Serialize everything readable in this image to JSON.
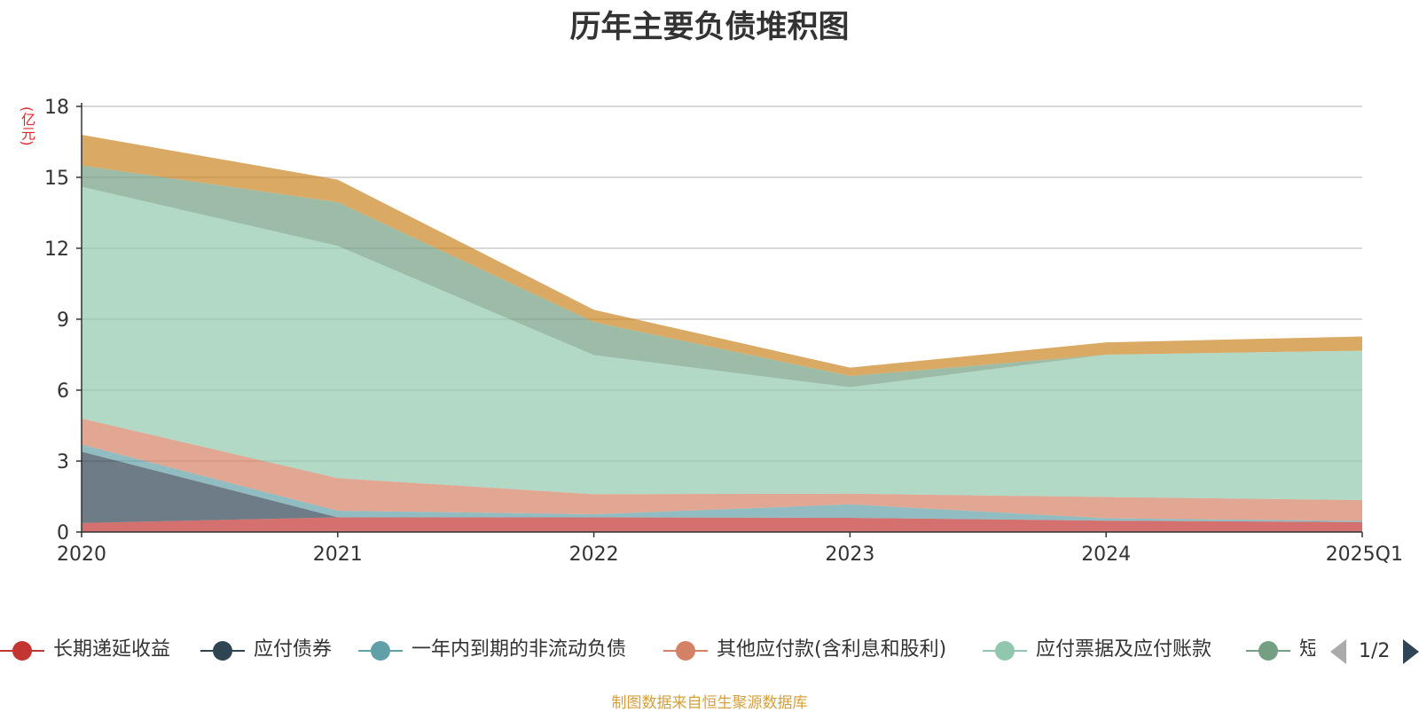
{
  "chart_data": {
    "type": "area",
    "stacked": true,
    "title": "历年主要负债堆积图",
    "y_unit": "(亿元)",
    "categories": [
      "2020",
      "2021",
      "2022",
      "2023",
      "2024",
      "2025Q1"
    ],
    "ylim": [
      0,
      18
    ],
    "yticks": [
      "0",
      "3",
      "6",
      "9",
      "12",
      "15",
      "18"
    ],
    "grid": true,
    "series": [
      {
        "name": "长期递延收益",
        "color": "#c23531",
        "values": [
          0.38,
          0.62,
          0.62,
          0.6,
          0.48,
          0.42
        ]
      },
      {
        "name": "应付债券",
        "color": "#2f4554",
        "values": [
          3.02,
          0.0,
          0.0,
          0.0,
          0.0,
          0.0
        ]
      },
      {
        "name": "一年内到期的非流动负债",
        "color": "#61a0a8",
        "values": [
          0.3,
          0.28,
          0.13,
          0.57,
          0.1,
          0.05
        ]
      },
      {
        "name": "其他应付款(含利息和股利)",
        "color": "#d48265",
        "values": [
          1.1,
          1.38,
          0.85,
          0.45,
          0.9,
          0.88
        ]
      },
      {
        "name": "应付票据及应付账款",
        "color": "#91c7ae",
        "values": [
          9.8,
          9.82,
          5.88,
          4.5,
          6.02,
          6.32
        ]
      },
      {
        "name": "短期借款",
        "color": "#749f83",
        "values": [
          0.9,
          1.85,
          1.4,
          0.48,
          0.0,
          0.0
        ]
      },
      {
        "name": "",
        "color": "#ca8622",
        "values": [
          1.3,
          0.95,
          0.52,
          0.35,
          0.52,
          0.6
        ]
      }
    ]
  },
  "legend": {
    "items": [
      {
        "label": "长期递延收益",
        "color": "#c23531"
      },
      {
        "label": "应付债券",
        "color": "#2f4554"
      },
      {
        "label": "一年内到期的非流动负债",
        "color": "#61a0a8"
      },
      {
        "label": "其他应付款(含利息和股利)",
        "color": "#d48265"
      },
      {
        "label": "应付票据及应付账款",
        "color": "#91c7ae"
      },
      {
        "label": "短",
        "color": "#749f83"
      }
    ],
    "page_text": "1/2"
  },
  "source_note": "制图数据来自恒生聚源数据库"
}
